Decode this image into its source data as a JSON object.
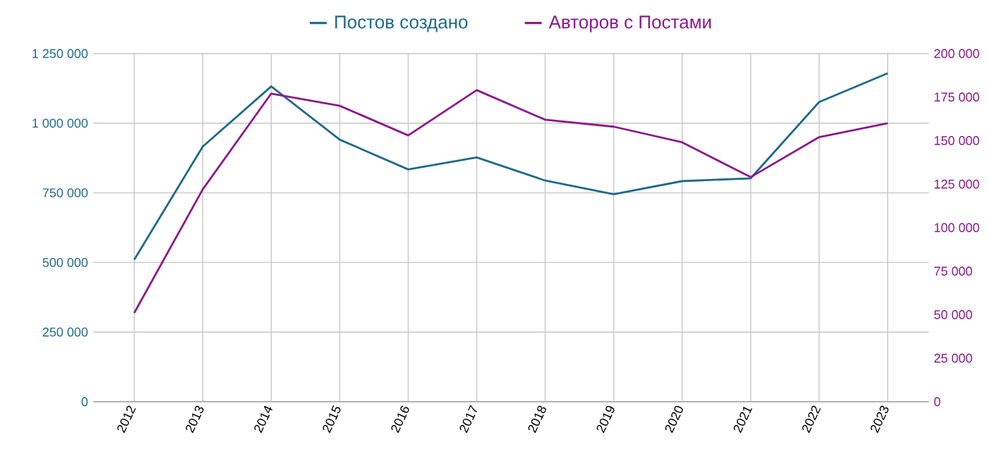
{
  "chart_data": {
    "type": "line",
    "categories": [
      "2012",
      "2013",
      "2014",
      "2015",
      "2016",
      "2017",
      "2018",
      "2019",
      "2020",
      "2021",
      "2022",
      "2023"
    ],
    "series": [
      {
        "name": "Постов создано",
        "color": "#1f6a8a",
        "values": [
          510000,
          916000,
          1132000,
          941000,
          834000,
          877000,
          794000,
          745000,
          792000,
          802000,
          1076000,
          1179000
        ]
      },
      {
        "name": "Авторов с Постами",
        "color": "#8b1a8c",
        "axis": "y2",
        "values": [
          51000,
          122000,
          177000,
          170000,
          153000,
          179000,
          162000,
          158000,
          149000,
          129000,
          152000,
          160000
        ]
      }
    ],
    "ylim": [
      0,
      1250000
    ],
    "yticks": [
      0,
      {
        "value": 250000,
        "label": "250 000"
      },
      {
        "value": 500000,
        "label": "500 000"
      },
      {
        "value": 750000,
        "label": "750 000"
      },
      {
        "value": 1000000,
        "label": "1 000 000"
      },
      {
        "value": 1250000,
        "label": "1 250 000"
      }
    ],
    "y2lim": [
      0,
      200000
    ],
    "y2ticks": [
      0,
      {
        "value": 25000,
        "label": "25 000"
      },
      {
        "value": 50000,
        "label": "50 000"
      },
      {
        "value": 75000,
        "label": "75 000"
      },
      {
        "value": 100000,
        "label": "100 000"
      },
      {
        "value": 125000,
        "label": "125 000"
      },
      {
        "value": 150000,
        "label": "150 000"
      },
      {
        "value": 175000,
        "label": "175 000"
      },
      {
        "value": 200000,
        "label": "200 000"
      }
    ],
    "grid": true,
    "legend": "top",
    "marker": "none",
    "line_style": "solid"
  }
}
